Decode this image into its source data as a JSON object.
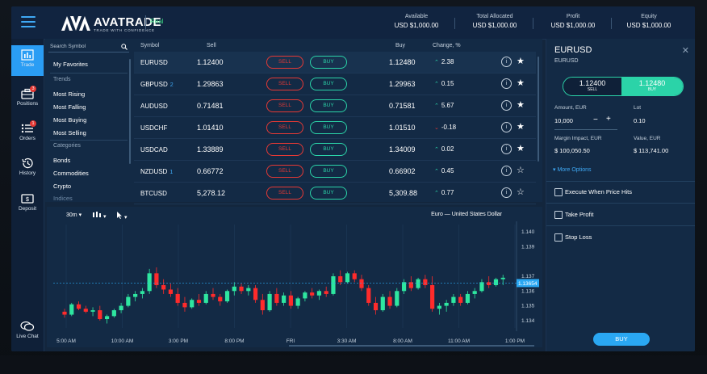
{
  "header": {
    "brand": "AVATRADE",
    "tagline": "TRADE WITH CONFIDENCE",
    "account_mode": "Real",
    "stats": [
      {
        "label": "Available",
        "value": "USD $1,000.00"
      },
      {
        "label": "Total Allocated",
        "value": "USD $1,000.00"
      },
      {
        "label": "Profit",
        "value": "USD $1,000.00"
      },
      {
        "label": "Equity",
        "value": "USD $1,000.00"
      }
    ]
  },
  "nav": [
    {
      "label": "Trade",
      "icon": "chart-bars-icon",
      "active": true
    },
    {
      "label": "Positions",
      "icon": "briefcase-icon",
      "badge": "3"
    },
    {
      "label": "Orders",
      "icon": "list-icon",
      "badge": "1"
    },
    {
      "label": "History",
      "icon": "history-icon"
    },
    {
      "label": "Deposit",
      "icon": "deposit-icon"
    },
    {
      "label": "Live Chat",
      "icon": "chat-icon"
    }
  ],
  "menu": {
    "search_placeholder": "Search Symbol",
    "favorites": "My Favorites",
    "trends_heading": "Trends",
    "trends": [
      "Most Rising",
      "Most Falling",
      "Most Buying",
      "Most Selling"
    ],
    "categories_heading": "Categories",
    "categories": [
      "Bonds",
      "Commodities",
      "Crypto",
      "Indices"
    ]
  },
  "table": {
    "headers": {
      "symbol": "Symbol",
      "sell": "Sell",
      "buy": "Buy",
      "change": "Change, %"
    },
    "sell_label": "SELL",
    "buy_label": "BUY",
    "rows": [
      {
        "symbol": "EURUSD",
        "count": "",
        "sell": "1.12400",
        "buy": "1.12480",
        "change": "2.38",
        "dir": "up",
        "fav": true
      },
      {
        "symbol": "GBPUSD",
        "count": "2",
        "sell": "1.29863",
        "buy": "1.29963",
        "change": "0.15",
        "dir": "up",
        "fav": true
      },
      {
        "symbol": "AUDUSD",
        "count": "",
        "sell": "0.71481",
        "buy": "0.71581",
        "change": "5.67",
        "dir": "up",
        "fav": true
      },
      {
        "symbol": "USDCHF",
        "count": "",
        "sell": "1.01410",
        "buy": "1.01510",
        "change": "-0.18",
        "dir": "down",
        "fav": true
      },
      {
        "symbol": "USDCAD",
        "count": "",
        "sell": "1.33889",
        "buy": "1.34009",
        "change": "0.02",
        "dir": "up",
        "fav": true
      },
      {
        "symbol": "NZDUSD",
        "count": "1",
        "sell": "0.66772",
        "buy": "0.66902",
        "change": "0.45",
        "dir": "up",
        "fav": false
      },
      {
        "symbol": "BTCUSD",
        "count": "",
        "sell": "5,278.12",
        "buy": "5,309.88",
        "change": "0.77",
        "dir": "up",
        "fav": false
      }
    ]
  },
  "chart": {
    "timeframe": "30m",
    "title": "Euro — United States Dollar",
    "current_price": "1.13654",
    "y_ticks": [
      "1.140",
      "1.139",
      "1.137",
      "1.136",
      "1.135",
      "1.134"
    ],
    "x_ticks": [
      "5:00 AM",
      "10:00 AM",
      "3:00 PM",
      "8:00 PM",
      "FRI",
      "3:30 AM",
      "8:00 AM",
      "11:00 AM",
      "1:00 PM"
    ]
  },
  "chart_data": {
    "type": "candlestick",
    "title": "Euro — United States Dollar",
    "ylim": [
      1.1335,
      1.1405
    ],
    "current": 1.13654,
    "up_color": "#2ee6a0",
    "down_color": "#ff2b2b",
    "candles": [
      [
        1.1346,
        1.1348,
        1.1342,
        1.1344
      ],
      [
        1.1344,
        1.1352,
        1.1343,
        1.1351
      ],
      [
        1.1351,
        1.1353,
        1.1347,
        1.1348
      ],
      [
        1.1348,
        1.135,
        1.1345,
        1.1346
      ],
      [
        1.1346,
        1.1349,
        1.1343,
        1.1347
      ],
      [
        1.1347,
        1.135,
        1.134,
        1.1341
      ],
      [
        1.1341,
        1.1344,
        1.1338,
        1.1343
      ],
      [
        1.1343,
        1.1348,
        1.1342,
        1.1347
      ],
      [
        1.1347,
        1.1352,
        1.1345,
        1.135
      ],
      [
        1.135,
        1.1358,
        1.1349,
        1.1356
      ],
      [
        1.1356,
        1.136,
        1.1353,
        1.1358
      ],
      [
        1.1358,
        1.1362,
        1.1355,
        1.136
      ],
      [
        1.136,
        1.1375,
        1.1358,
        1.1372
      ],
      [
        1.1372,
        1.1376,
        1.1362,
        1.1364
      ],
      [
        1.1364,
        1.1368,
        1.1358,
        1.1361
      ],
      [
        1.1361,
        1.1365,
        1.1356,
        1.1358
      ],
      [
        1.1358,
        1.1362,
        1.135,
        1.1352
      ],
      [
        1.1352,
        1.1356,
        1.1346,
        1.1349
      ],
      [
        1.1349,
        1.1355,
        1.1348,
        1.1354
      ],
      [
        1.1354,
        1.1358,
        1.135,
        1.1352
      ],
      [
        1.1352,
        1.136,
        1.1351,
        1.1358
      ],
      [
        1.1358,
        1.1362,
        1.1354,
        1.1356
      ],
      [
        1.1356,
        1.1358,
        1.135,
        1.1353
      ],
      [
        1.1353,
        1.1361,
        1.1352,
        1.136
      ],
      [
        1.136,
        1.1366,
        1.1357,
        1.1363
      ],
      [
        1.1363,
        1.1365,
        1.1358,
        1.136
      ],
      [
        1.136,
        1.1364,
        1.1357,
        1.1362
      ],
      [
        1.1362,
        1.1364,
        1.1352,
        1.1354
      ],
      [
        1.1354,
        1.1358,
        1.1344,
        1.1347
      ],
      [
        1.1347,
        1.136,
        1.1346,
        1.1358
      ],
      [
        1.1358,
        1.1362,
        1.135,
        1.1352
      ],
      [
        1.1352,
        1.1359,
        1.135,
        1.1357
      ],
      [
        1.1357,
        1.136,
        1.1348,
        1.135
      ],
      [
        1.135,
        1.1356,
        1.1348,
        1.1355
      ],
      [
        1.1355,
        1.136,
        1.1353,
        1.1359
      ],
      [
        1.1359,
        1.1362,
        1.1355,
        1.1357
      ],
      [
        1.1357,
        1.1361,
        1.1354,
        1.136
      ],
      [
        1.136,
        1.1363,
        1.1356,
        1.1358
      ],
      [
        1.1358,
        1.1372,
        1.1357,
        1.137
      ],
      [
        1.137,
        1.1374,
        1.1364,
        1.1366
      ],
      [
        1.1366,
        1.1373,
        1.1365,
        1.1372
      ],
      [
        1.1372,
        1.1374,
        1.1366,
        1.1368
      ],
      [
        1.1368,
        1.1371,
        1.136,
        1.1362
      ],
      [
        1.1362,
        1.1364,
        1.135,
        1.1352
      ],
      [
        1.1352,
        1.1356,
        1.1344,
        1.1347
      ],
      [
        1.1347,
        1.1358,
        1.1346,
        1.1356
      ],
      [
        1.1356,
        1.136,
        1.1348,
        1.135
      ],
      [
        1.135,
        1.1362,
        1.1349,
        1.136
      ],
      [
        1.136,
        1.1368,
        1.1358,
        1.1366
      ],
      [
        1.1366,
        1.137,
        1.136,
        1.1362
      ],
      [
        1.1362,
        1.1369,
        1.1361,
        1.1368
      ],
      [
        1.1368,
        1.1371,
        1.1362,
        1.1364
      ],
      [
        1.1364,
        1.137,
        1.1346,
        1.1348
      ],
      [
        1.1348,
        1.1352,
        1.1344,
        1.135
      ],
      [
        1.135,
        1.1354,
        1.1346,
        1.1352
      ],
      [
        1.1352,
        1.1358,
        1.135,
        1.1356
      ],
      [
        1.1356,
        1.1358,
        1.135,
        1.1352
      ],
      [
        1.1352,
        1.136,
        1.1351,
        1.1358
      ],
      [
        1.1358,
        1.1362,
        1.1355,
        1.136
      ],
      [
        1.136,
        1.1368,
        1.1359,
        1.1366
      ],
      [
        1.1366,
        1.137,
        1.1362,
        1.1364
      ],
      [
        1.1364,
        1.1369,
        1.1363,
        1.1368
      ],
      [
        1.1368,
        1.1371,
        1.1364,
        1.1369
      ]
    ]
  }
}
